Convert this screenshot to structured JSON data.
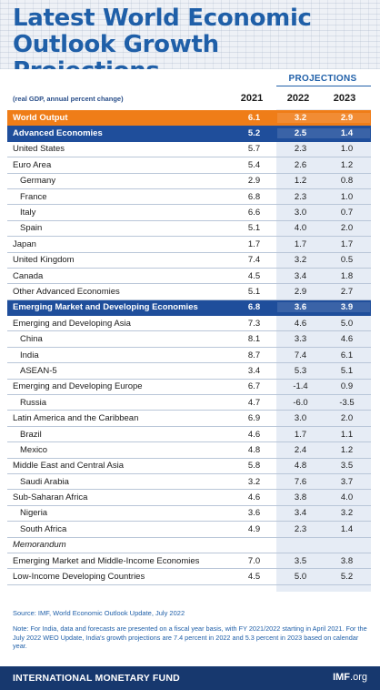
{
  "header": {
    "title": "Latest World Economic Outlook Growth Projections"
  },
  "table_header": {
    "projections_label": "PROJECTIONS",
    "units_note": "(real GDP, annual percent change)",
    "years": [
      "2021",
      "2022",
      "2023"
    ]
  },
  "chart_data": {
    "type": "table",
    "title": "Latest World Economic Outlook Growth Projections",
    "subtitle": "(real GDP, annual percent change)",
    "columns": [
      "2021",
      "2022",
      "2023"
    ],
    "rows": [
      {
        "label": "World Output",
        "values": [
          "6.1",
          "3.2",
          "2.9"
        ]
      },
      {
        "label": "Advanced Economies",
        "values": [
          "5.2",
          "2.5",
          "1.4"
        ]
      },
      {
        "label": "United States",
        "values": [
          "5.7",
          "2.3",
          "1.0"
        ]
      },
      {
        "label": "Euro Area",
        "values": [
          "5.4",
          "2.6",
          "1.2"
        ]
      },
      {
        "label": "Germany",
        "values": [
          "2.9",
          "1.2",
          "0.8"
        ]
      },
      {
        "label": "France",
        "values": [
          "6.8",
          "2.3",
          "1.0"
        ]
      },
      {
        "label": "Italy",
        "values": [
          "6.6",
          "3.0",
          "0.7"
        ]
      },
      {
        "label": "Spain",
        "values": [
          "5.1",
          "4.0",
          "2.0"
        ]
      },
      {
        "label": "Japan",
        "values": [
          "1.7",
          "1.7",
          "1.7"
        ]
      },
      {
        "label": "United Kingdom",
        "values": [
          "7.4",
          "3.2",
          "0.5"
        ]
      },
      {
        "label": "Canada",
        "values": [
          "4.5",
          "3.4",
          "1.8"
        ]
      },
      {
        "label": "Other Advanced Economies",
        "values": [
          "5.1",
          "2.9",
          "2.7"
        ]
      },
      {
        "label": "Emerging Market and Developing Economies",
        "values": [
          "6.8",
          "3.6",
          "3.9"
        ]
      },
      {
        "label": "Emerging and Developing Asia",
        "values": [
          "7.3",
          "4.6",
          "5.0"
        ]
      },
      {
        "label": "China",
        "values": [
          "8.1",
          "3.3",
          "4.6"
        ]
      },
      {
        "label": "India",
        "values": [
          "8.7",
          "7.4",
          "6.1"
        ]
      },
      {
        "label": "ASEAN-5",
        "values": [
          "3.4",
          "5.3",
          "5.1"
        ]
      },
      {
        "label": "Emerging and Developing Europe",
        "values": [
          "6.7",
          "-1.4",
          "0.9"
        ]
      },
      {
        "label": "Russia",
        "values": [
          "4.7",
          "-6.0",
          "-3.5"
        ]
      },
      {
        "label": "Latin America and the Caribbean",
        "values": [
          "6.9",
          "3.0",
          "2.0"
        ]
      },
      {
        "label": "Brazil",
        "values": [
          "4.6",
          "1.7",
          "1.1"
        ]
      },
      {
        "label": "Mexico",
        "values": [
          "4.8",
          "2.4",
          "1.2"
        ]
      },
      {
        "label": "Middle East and Central Asia",
        "values": [
          "5.8",
          "4.8",
          "3.5"
        ]
      },
      {
        "label": "Saudi Arabia",
        "values": [
          "3.2",
          "7.6",
          "3.7"
        ]
      },
      {
        "label": "Sub-Saharan Africa",
        "values": [
          "4.6",
          "3.8",
          "4.0"
        ]
      },
      {
        "label": "Nigeria",
        "values": [
          "3.6",
          "3.4",
          "3.2"
        ]
      },
      {
        "label": "South Africa",
        "values": [
          "4.9",
          "2.3",
          "1.4"
        ]
      },
      {
        "label": "Memorandum",
        "values": [
          "",
          "",
          ""
        ]
      },
      {
        "label": "Emerging Market and Middle-Income Economies",
        "values": [
          "7.0",
          "3.5",
          "3.8"
        ]
      },
      {
        "label": "Low-Income Developing Countries",
        "values": [
          "4.5",
          "5.0",
          "5.2"
        ]
      }
    ]
  },
  "row_styles": [
    "orange",
    "blue",
    "plain",
    "plain",
    "indent",
    "indent",
    "indent",
    "indent",
    "plain",
    "plain",
    "plain",
    "plain",
    "blue",
    "plain",
    "indent",
    "indent",
    "indent",
    "plain",
    "indent",
    "plain",
    "indent",
    "indent",
    "plain",
    "indent",
    "plain",
    "indent",
    "indent",
    "italic",
    "plain",
    "plain"
  ],
  "source": "Source: IMF, World Economic Outlook Update, July 2022",
  "note": "Note: For India, data and forecasts are presented on a fiscal year basis, with FY 2021/2022 starting in April 2021. For the July 2022 WEO Update, India's growth projections are 7.4 percent in 2022 and 5.3 percent in 2023 based on calendar year.",
  "footer": {
    "org": "INTERNATIONAL MONETARY FUND",
    "site_bold": "IMF",
    "site_rest": ".org"
  },
  "colors": {
    "title_blue": "#1f5fa8",
    "highlight_orange": "#ef7d18",
    "highlight_blue": "#1f4e9b",
    "footer_navy": "#17386e",
    "projection_shade": "#e6ecf5"
  }
}
